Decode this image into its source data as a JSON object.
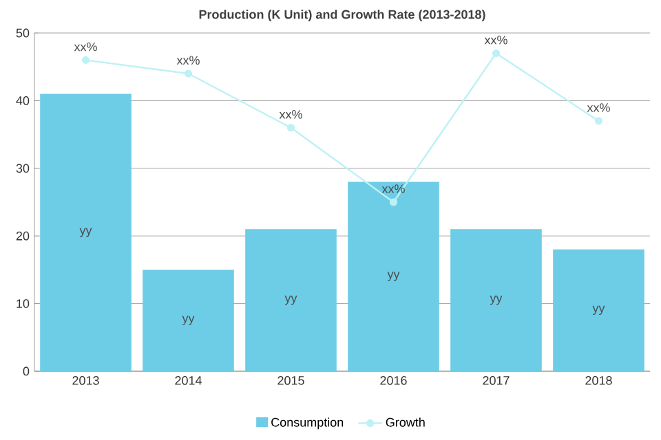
{
  "chart_data": {
    "type": "bar",
    "title": "Production (K Unit) and Growth Rate (2013-2018)",
    "categories": [
      "2013",
      "2014",
      "2015",
      "2016",
      "2017",
      "2018"
    ],
    "series": [
      {
        "name": "Consumption",
        "color": "#6dcde6",
        "values": [
          41,
          15,
          21,
          28,
          21,
          18
        ],
        "value_labels": [
          "yy",
          "yy",
          "yy",
          "yy",
          "yy",
          "yy"
        ]
      },
      {
        "name": "Growth",
        "type": "line",
        "color": "#bdf1f5",
        "marker": "circle",
        "values": [
          46,
          44,
          36,
          25,
          47,
          37
        ],
        "value_labels": [
          "xx%",
          "xx%",
          "xx%",
          "xx%",
          "xx%",
          "xx%"
        ]
      }
    ],
    "ylim": [
      0,
      50
    ],
    "yticks": [
      0,
      10,
      20,
      30,
      40,
      50
    ],
    "grid": "y",
    "legend": "bottom"
  }
}
